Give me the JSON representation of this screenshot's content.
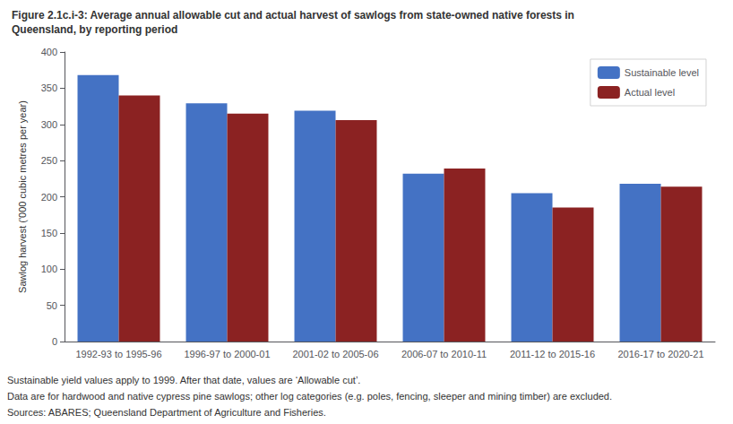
{
  "chart_data": {
    "type": "bar",
    "title": "Figure 2.1c.i-3: Average annual allowable cut and actual harvest of sawlogs from state-owned native forests in",
    "subtitle": "Queensland, by reporting period",
    "categories": [
      "1992-93 to 1995-96",
      "1996-97 to 2000-01",
      "2001-02 to 2005-06",
      "2006-07 to 2010-11",
      "2011-12 to 2015-16",
      "2016-17 to 2020-21"
    ],
    "series": [
      {
        "name": "Sustainable level",
        "color": "#4472C4",
        "values": [
          368,
          329,
          319,
          232,
          205,
          218
        ]
      },
      {
        "name": "Actual level",
        "color": "#8B2222",
        "values": [
          340,
          315,
          306,
          239,
          185,
          214
        ]
      }
    ],
    "ylabel": "Sawlog harvest ('000 cubic metres per year)",
    "ylim": [
      0,
      400
    ],
    "yticks": [
      0,
      50,
      100,
      150,
      200,
      250,
      300,
      350,
      400
    ],
    "grid": false,
    "legend": "upper right",
    "annotations": [
      "Sustainable yield values apply to 1999. After that date, values are ‘Allowable cut’.",
      "Data are for hardwood and native cypress pine sawlogs; other log categories (e.g. poles, fencing, sleeper and mining timber) are excluded.",
      "Sources: ABARES; Queensland Department of Agriculture and Fisheries."
    ]
  }
}
